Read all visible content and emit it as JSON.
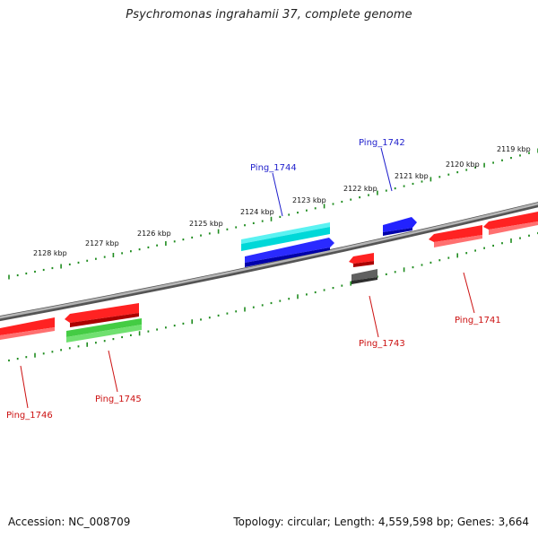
{
  "title": "Psychromonas ingrahamii 37, complete genome",
  "footer": {
    "accession": "Accession: NC_008709",
    "info": "Topology: circular; Length: 4,559,598 bp; Genes: 3,664"
  },
  "colors": {
    "background": "#ffffff",
    "backbone": "#8a8a8a",
    "tick": "#1f8c1f",
    "forward_gene": "#0000dd",
    "forward_rna": "#00e5e5",
    "reverse_gene": "#ee1111",
    "reverse_rna": "#33bb33",
    "pseudo": "#555555",
    "forward_label": "#1f1fcc",
    "reverse_label": "#cc1111"
  },
  "scale": {
    "kbp_labels": [
      "2119 kbp",
      "2120 kbp",
      "2121 kbp",
      "2122 kbp",
      "2123 kbp",
      "2124 kbp",
      "2125 kbp",
      "2126 kbp",
      "2127 kbp",
      "2128 kbp"
    ]
  },
  "genes": [
    {
      "label": "Ping_1741",
      "strand": "reverse",
      "feature": "gene"
    },
    {
      "label": "Ping_1742",
      "strand": "forward",
      "feature": "gene"
    },
    {
      "label": "Ping_1743",
      "strand": "reverse",
      "feature": "gene"
    },
    {
      "label": "Ping_1744",
      "strand": "forward",
      "feature": "gene"
    },
    {
      "label": "Ping_1745",
      "strand": "reverse",
      "feature": "gene"
    },
    {
      "label": "Ping_1746",
      "strand": "reverse",
      "feature": "gene"
    }
  ]
}
